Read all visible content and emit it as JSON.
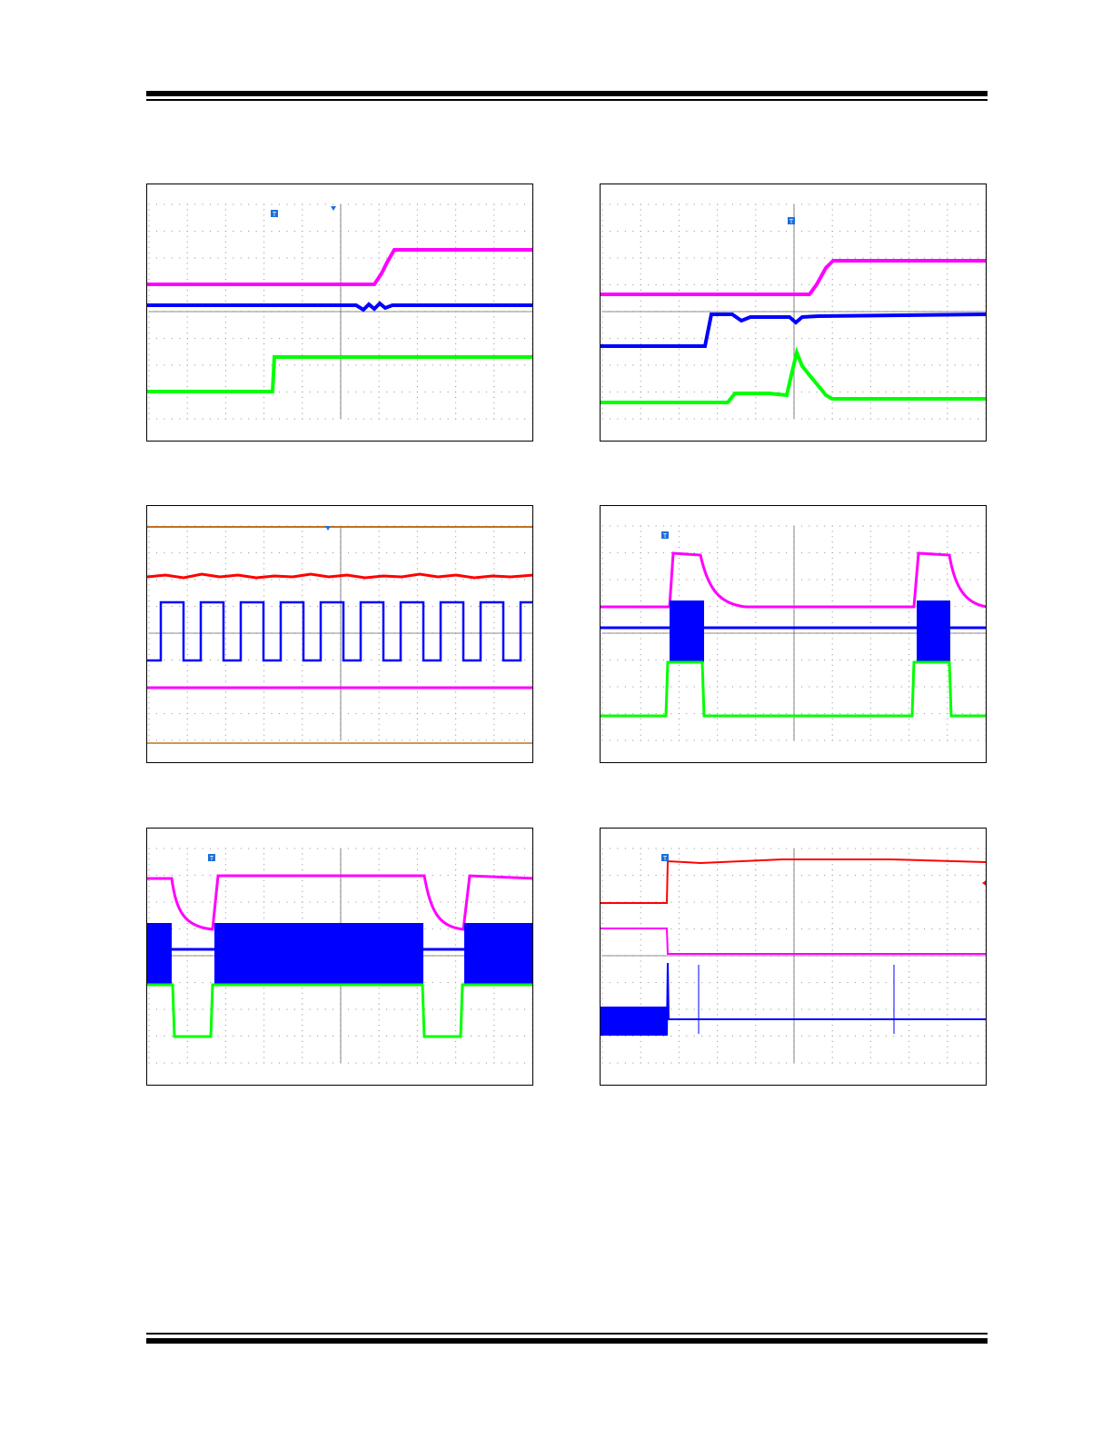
{
  "page": {
    "header_rule": "double-rule",
    "footer_rule": "double-rule"
  },
  "colors": {
    "magenta": "#ff00ff",
    "blue": "#0000ff",
    "green": "#00ff00",
    "red": "#ff0000",
    "orange": "#c07020",
    "grid": "#9a9a9a",
    "trigger": "#1e6fd9"
  },
  "scopes": [
    {
      "id": "scope-1",
      "traces": [
        "magenta",
        "blue",
        "green"
      ],
      "trigger_marker": "T"
    },
    {
      "id": "scope-2",
      "traces": [
        "magenta",
        "blue",
        "green"
      ],
      "trigger_marker": "T"
    },
    {
      "id": "scope-3",
      "traces": [
        "orange",
        "red",
        "blue",
        "magenta"
      ],
      "trigger_marker": ""
    },
    {
      "id": "scope-4",
      "traces": [
        "magenta",
        "blue",
        "green"
      ],
      "trigger_marker": "T"
    },
    {
      "id": "scope-5",
      "traces": [
        "magenta",
        "blue",
        "green"
      ],
      "trigger_marker": "T"
    },
    {
      "id": "scope-6",
      "traces": [
        "red",
        "magenta",
        "blue"
      ],
      "trigger_marker": "T"
    }
  ]
}
